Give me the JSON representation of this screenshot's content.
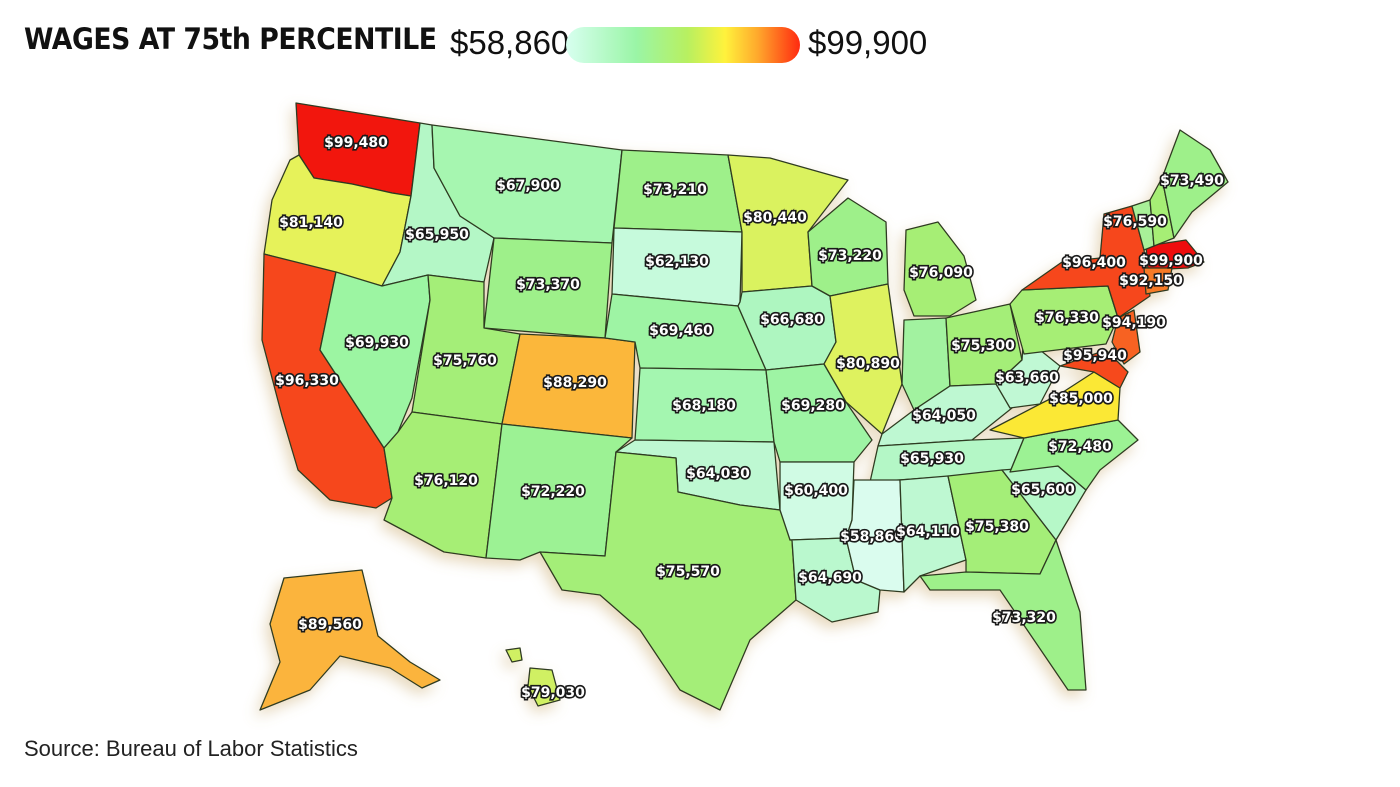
{
  "title": "WAGES AT 75th PERCENTILE",
  "legend": {
    "min_label": "$58,860",
    "max_label": "$99,900",
    "min_value": 58860,
    "max_value": 99900
  },
  "source": "Source: Bureau of Labor Statistics",
  "states": [
    {
      "id": "WA",
      "label": "$99,480",
      "value": 99480,
      "color": "#f2120c"
    },
    {
      "id": "OR",
      "label": "$81,140",
      "value": 81140,
      "color": "#e6f25a"
    },
    {
      "id": "CA",
      "label": "$96,330",
      "value": 96330,
      "color": "#f6461a"
    },
    {
      "id": "ID",
      "label": "$65,950",
      "value": 65950,
      "color": "#b4f7c6"
    },
    {
      "id": "NV",
      "label": "$69,930",
      "value": 69930,
      "color": "#9cf5a2"
    },
    {
      "id": "MT",
      "label": "$67,900",
      "value": 67900,
      "color": "#a6f6b0"
    },
    {
      "id": "WY",
      "label": "$73,370",
      "value": 73370,
      "color": "#9ef08a"
    },
    {
      "id": "UT",
      "label": "$75,760",
      "value": 75760,
      "color": "#a4ee78"
    },
    {
      "id": "CO",
      "label": "$88,290",
      "value": 88290,
      "color": "#fbb73a"
    },
    {
      "id": "AZ",
      "label": "$76,120",
      "value": 76120,
      "color": "#a6ee74"
    },
    {
      "id": "NM",
      "label": "$72,220",
      "value": 72220,
      "color": "#9cf294"
    },
    {
      "id": "ND",
      "label": "$73,210",
      "value": 73210,
      "color": "#9ef08a"
    },
    {
      "id": "SD",
      "label": "$62,130",
      "value": 62130,
      "color": "#c6fadc"
    },
    {
      "id": "NE",
      "label": "$69,460",
      "value": 69460,
      "color": "#9ef4a4"
    },
    {
      "id": "KS",
      "label": "$68,180",
      "value": 68180,
      "color": "#a4f6b0"
    },
    {
      "id": "OK",
      "label": "$64,030",
      "value": 64030,
      "color": "#bef8d2"
    },
    {
      "id": "TX",
      "label": "$75,570",
      "value": 75570,
      "color": "#a4ee78"
    },
    {
      "id": "MN",
      "label": "$80,440",
      "value": 80440,
      "color": "#daf25e"
    },
    {
      "id": "IA",
      "label": "$66,680",
      "value": 66680,
      "color": "#aef6c0"
    },
    {
      "id": "MO",
      "label": "$69,280",
      "value": 69280,
      "color": "#9ef4a4"
    },
    {
      "id": "AR",
      "label": "$60,400",
      "value": 60400,
      "color": "#d0fbe4"
    },
    {
      "id": "LA",
      "label": "$64,690",
      "value": 64690,
      "color": "#baf8ce"
    },
    {
      "id": "WI",
      "label": "$73,220",
      "value": 73220,
      "color": "#9ef08a"
    },
    {
      "id": "IL",
      "label": "$80,890",
      "value": 80890,
      "color": "#def25e"
    },
    {
      "id": "MI",
      "label": "$76,090",
      "value": 76090,
      "color": "#a6ee74"
    },
    {
      "id": "IN",
      "label": "",
      "value": null,
      "color": "#a2f2a0"
    },
    {
      "id": "OH",
      "label": "$75,300",
      "value": 75300,
      "color": "#a4ee78"
    },
    {
      "id": "KY",
      "label": "$64,050",
      "value": 64050,
      "color": "#bef8d2"
    },
    {
      "id": "TN",
      "label": "$65,930",
      "value": 65930,
      "color": "#b4f7c6"
    },
    {
      "id": "MS",
      "label": "$58,860",
      "value": 58860,
      "color": "#dafcee"
    },
    {
      "id": "AL",
      "label": "$64,110",
      "value": 64110,
      "color": "#bef8d2"
    },
    {
      "id": "GA",
      "label": "$75,380",
      "value": 75380,
      "color": "#a4ee78"
    },
    {
      "id": "FL",
      "label": "$73,320",
      "value": 73320,
      "color": "#9ef08a"
    },
    {
      "id": "SC",
      "label": "$65,600",
      "value": 65600,
      "color": "#b6f8c8"
    },
    {
      "id": "NC",
      "label": "$72,480",
      "value": 72480,
      "color": "#9cf294"
    },
    {
      "id": "VA",
      "label": "$85,000",
      "value": 85000,
      "color": "#fbe834"
    },
    {
      "id": "WV",
      "label": "$63,660",
      "value": 63660,
      "color": "#c0f8d4"
    },
    {
      "id": "PA",
      "label": "$76,330",
      "value": 76330,
      "color": "#a6ee74"
    },
    {
      "id": "NY",
      "label": "$96,400",
      "value": 96400,
      "color": "#f6461a"
    },
    {
      "id": "NJ",
      "label": "$94,190",
      "value": 94190,
      "color": "#f76222"
    },
    {
      "id": "MD",
      "label": "$95,940",
      "value": 95940,
      "color": "#f64a1c"
    },
    {
      "id": "MA",
      "label": "$99,900",
      "value": 99900,
      "color": "#ee0e10"
    },
    {
      "id": "CT",
      "label": "$92,150",
      "value": 92150,
      "color": "#f77a26"
    },
    {
      "id": "VT",
      "label": "",
      "value": null,
      "color": "#a8f098"
    },
    {
      "id": "NH",
      "label": "$76,590",
      "value": 76590,
      "color": "#a6ee74"
    },
    {
      "id": "ME",
      "label": "$73,490",
      "value": 73490,
      "color": "#9ef08a"
    },
    {
      "id": "AK",
      "label": "$89,560",
      "value": 89560,
      "color": "#fbb43c"
    },
    {
      "id": "HI",
      "label": "$79,030",
      "value": 79030,
      "color": "#d0f064"
    }
  ]
}
